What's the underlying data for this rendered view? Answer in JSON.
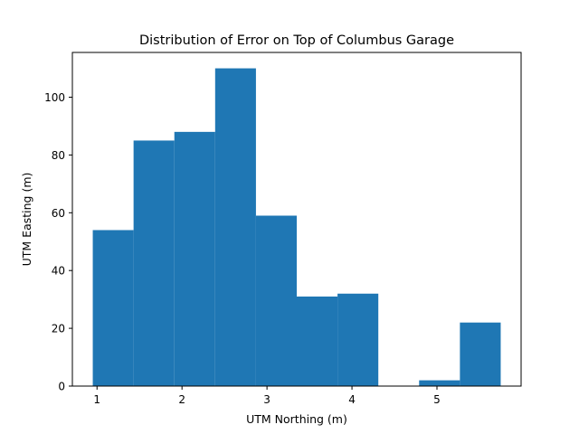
{
  "chart_data": {
    "type": "bar",
    "title": "Distribution of Error on Top of Columbus Garage",
    "xlabel": "UTM Northing (m)",
    "ylabel": "UTM Easting (m)",
    "bin_edges": [
      0.95,
      1.43,
      1.91,
      2.39,
      2.87,
      3.35,
      3.83,
      4.31,
      4.79,
      5.27,
      5.75
    ],
    "values": [
      54,
      85,
      88,
      110,
      59,
      31,
      32,
      0,
      2,
      22
    ],
    "xlim": [
      0.71,
      5.99
    ],
    "ylim": [
      0,
      115.5
    ],
    "xticks": [
      1,
      2,
      3,
      4,
      5
    ],
    "yticks": [
      0,
      20,
      40,
      60,
      80,
      100
    ],
    "grid": false,
    "bar_color": "#1f77b4"
  }
}
